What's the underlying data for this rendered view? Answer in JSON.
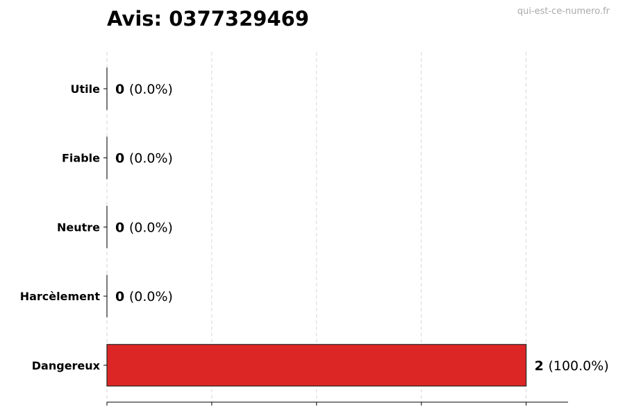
{
  "chart_data": {
    "type": "bar",
    "orientation": "horizontal",
    "title": "Avis: 0377329469",
    "categories": [
      "Utile",
      "Fiable",
      "Neutre",
      "Harcèlement",
      "Dangereux"
    ],
    "values": [
      0,
      0,
      0,
      0,
      2
    ],
    "value_labels": [
      {
        "count": "0",
        "pct": "(0.0%)"
      },
      {
        "count": "0",
        "pct": "(0.0%)"
      },
      {
        "count": "0",
        "pct": "(0.0%)"
      },
      {
        "count": "0",
        "pct": "(0.0%)"
      },
      {
        "count": "2",
        "pct": "(100.0%)"
      }
    ],
    "xlim": [
      0,
      2.2
    ],
    "xticks": [
      0,
      0.5,
      1,
      1.5,
      2
    ],
    "grid": "vertical dashed",
    "bar_color": "#dc2626",
    "xlabel": "",
    "ylabel": ""
  },
  "watermark": "qui-est-ce-numero.fr"
}
